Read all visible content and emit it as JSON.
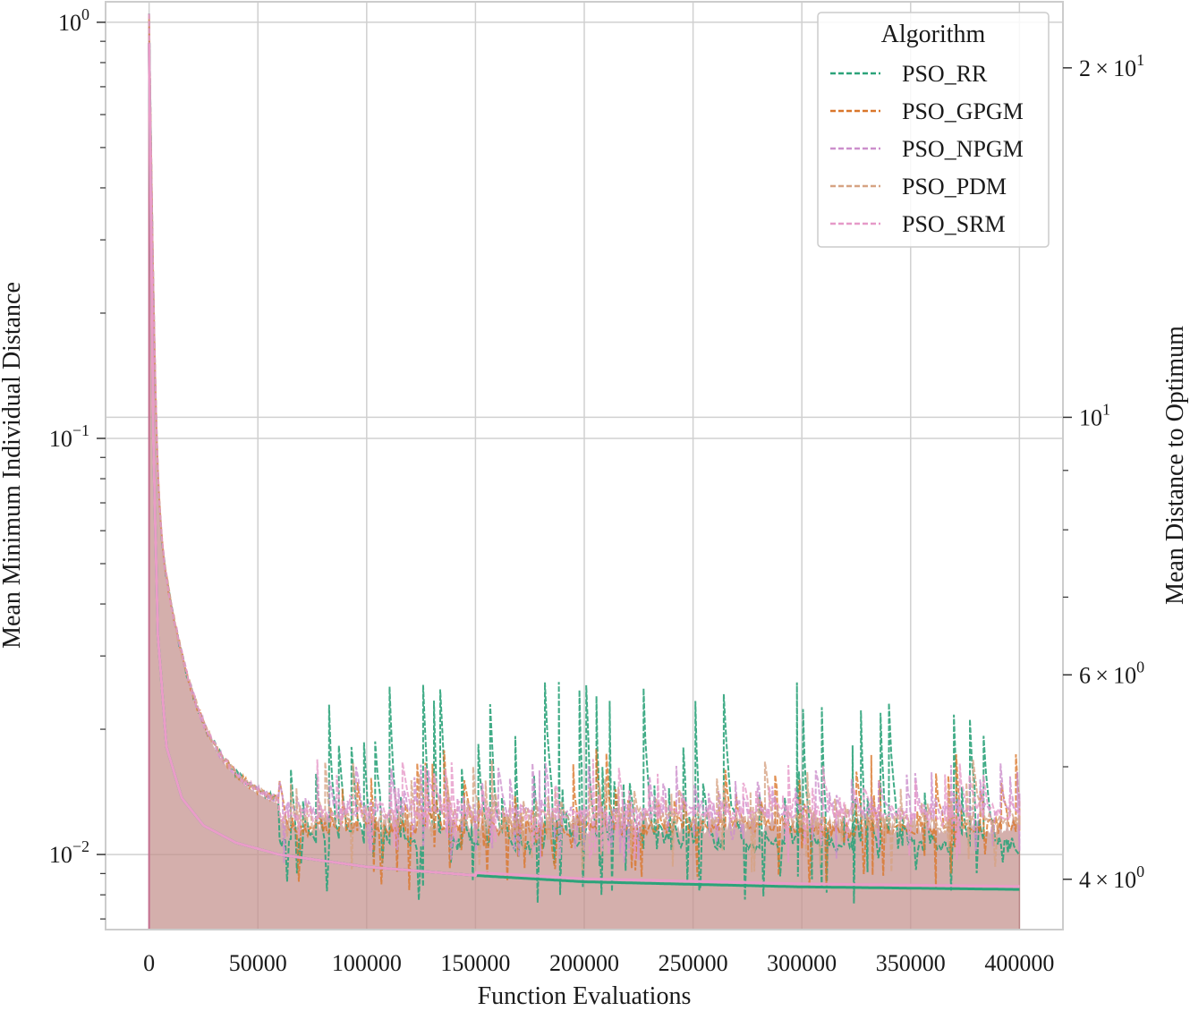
{
  "chart_data": {
    "type": "line",
    "xlabel": "Function Evaluations",
    "ylabel": "Mean Minimum Individual Distance",
    "y2label": "Mean Distance to Optimum",
    "yscale": "log",
    "y2scale": "log",
    "xlim": [
      -20000,
      420000
    ],
    "ylim": [
      0.0066,
      1.12
    ],
    "y2lim": [
      3.62,
      22.8
    ],
    "grid": true,
    "legend_title": "Algorithm",
    "legend_position": "top-right",
    "legend_line_style": "dashed",
    "xticks": [
      {
        "value": 0,
        "label": "0"
      },
      {
        "value": 50000,
        "label": "50000"
      },
      {
        "value": 100000,
        "label": "100000"
      },
      {
        "value": 150000,
        "label": "150000"
      },
      {
        "value": 200000,
        "label": "200000"
      },
      {
        "value": 250000,
        "label": "250000"
      },
      {
        "value": 300000,
        "label": "300000"
      },
      {
        "value": 350000,
        "label": "350000"
      },
      {
        "value": 400000,
        "label": "400000"
      }
    ],
    "yticks": [
      {
        "value": 1,
        "base": "10",
        "exp": "0"
      },
      {
        "value": 0.1,
        "base": "10",
        "exp": "−1"
      },
      {
        "value": 0.01,
        "base": "10",
        "exp": "−2"
      }
    ],
    "y2ticks": [
      {
        "value": 20,
        "mant": "2",
        "base": "10",
        "exp": "1",
        "gridline": false
      },
      {
        "value": 10,
        "mant": "",
        "base": "10",
        "exp": "1",
        "gridline": true
      },
      {
        "value": 6,
        "mant": "6",
        "base": "10",
        "exp": "0",
        "gridline": false
      },
      {
        "value": 4,
        "mant": "4",
        "base": "10",
        "exp": "0",
        "gridline": false
      }
    ],
    "fill_color": "#c4908c",
    "mean_distance_curve": {
      "description_free": true,
      "x": [
        0,
        1000,
        2000,
        4000,
        8000,
        15000,
        25000,
        40000,
        60000,
        100000,
        150000,
        200000,
        300000,
        400000
      ],
      "y": [
        21,
        14,
        9.5,
        6.5,
        5.2,
        4.7,
        4.45,
        4.3,
        4.2,
        4.1,
        4.03,
        3.98,
        3.94,
        3.92
      ]
    },
    "series": [
      {
        "name": "PSO_RR",
        "color": "#2ca37a",
        "baseline": 0.0105,
        "spike_max": 0.026,
        "min": 0.0075
      },
      {
        "name": "PSO_GPGM",
        "color": "#d9772b",
        "baseline": 0.0115,
        "spike_max": 0.018,
        "min": 0.0082
      },
      {
        "name": "PSO_NPGM",
        "color": "#cc8fcc",
        "baseline": 0.0125,
        "spike_max": 0.017,
        "min": 0.0095
      },
      {
        "name": "PSO_PDM",
        "color": "#d6a383",
        "baseline": 0.012,
        "spike_max": 0.017,
        "min": 0.009
      },
      {
        "name": "PSO_SRM",
        "color": "#e699c8",
        "baseline": 0.0125,
        "spike_max": 0.017,
        "min": 0.0095
      }
    ]
  }
}
